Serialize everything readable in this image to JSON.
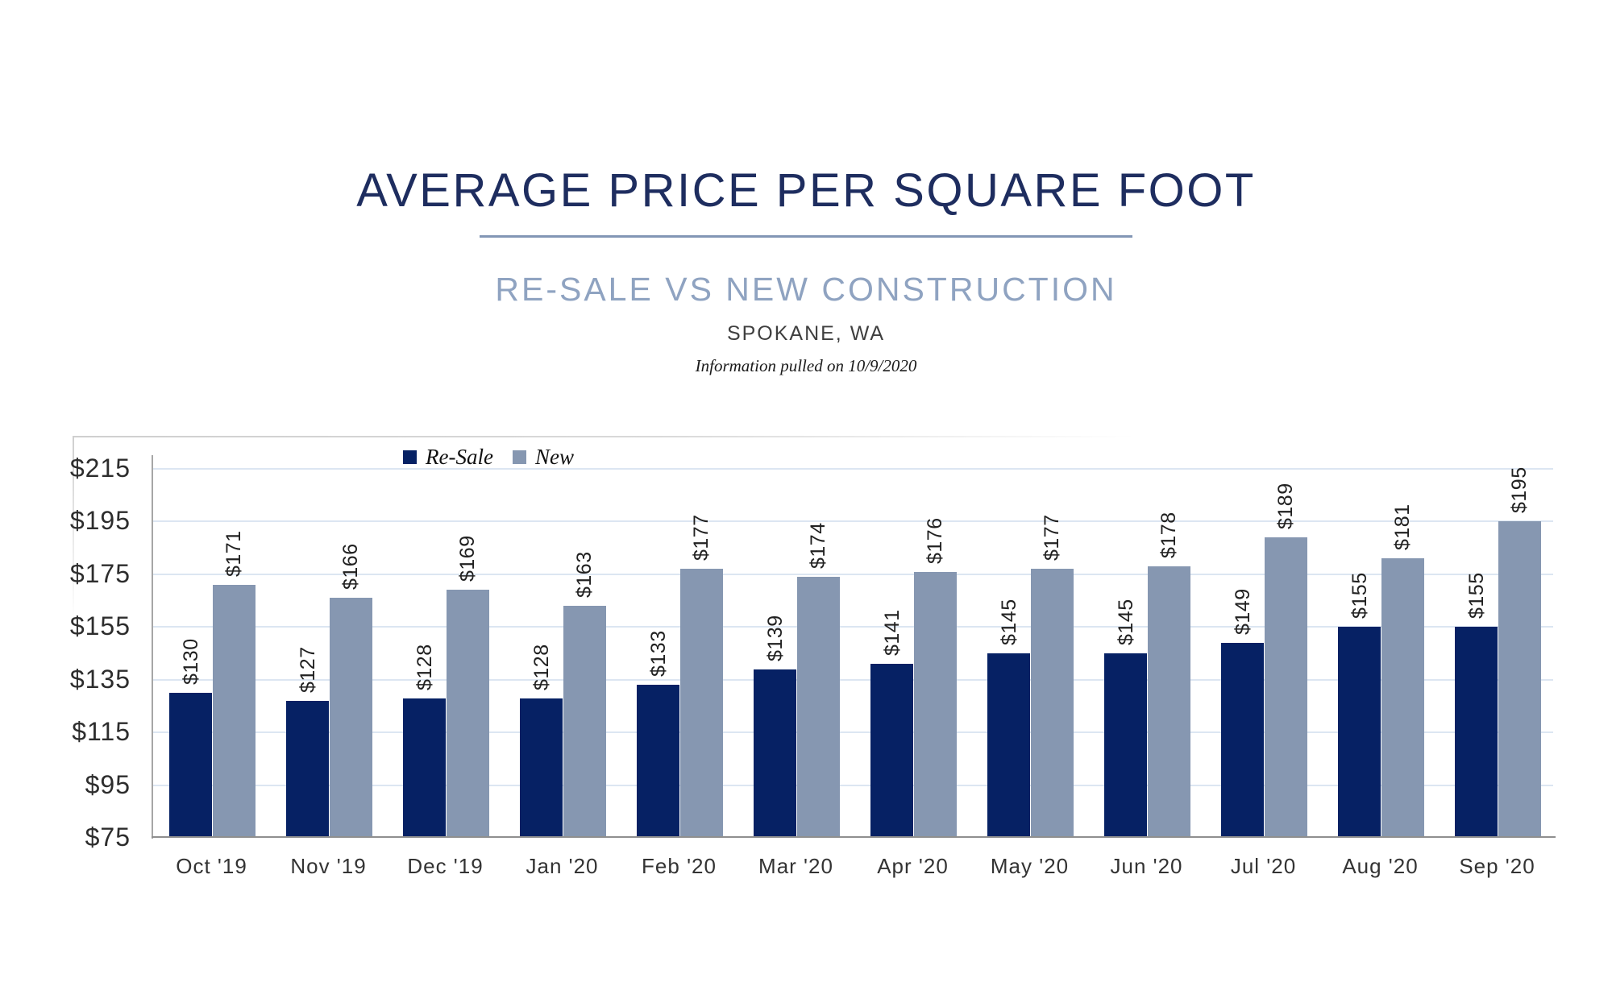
{
  "header": {
    "title": "AVERAGE PRICE PER SQUARE FOOT",
    "subtitle": "RE-SALE VS NEW CONSTRUCTION",
    "location": "SPOKANE, WA",
    "info_note": "Information pulled on 10/9/2020"
  },
  "colors": {
    "title": "#1e2d5f",
    "subtitle": "#8fa3c1",
    "divider": "#8296b5",
    "resale_bar": "#062164",
    "new_bar": "#8697b1",
    "gridline": "#dce6f2",
    "axis": "#8f8f8f"
  },
  "chart_data": {
    "type": "bar",
    "title": "Average Price Per Square Foot — Re-Sale vs New Construction, Spokane, WA",
    "categories": [
      "Oct '19",
      "Nov '19",
      "Dec '19",
      "Jan '20",
      "Feb '20",
      "Mar '20",
      "Apr '20",
      "May '20",
      "Jun '20",
      "Jul '20",
      "Aug '20",
      "Sep '20"
    ],
    "series": [
      {
        "name": "Re-Sale",
        "color": "#062164",
        "values": [
          130,
          127,
          128,
          128,
          133,
          139,
          141,
          145,
          145,
          149,
          155,
          155
        ],
        "data_labels": [
          "$130",
          "$127",
          "$128",
          "$128",
          "$133",
          "$139",
          "$141",
          "$145",
          "$145",
          "$149",
          "$155",
          "$155"
        ]
      },
      {
        "name": "New",
        "color": "#8697b1",
        "values": [
          171,
          166,
          169,
          163,
          177,
          174,
          176,
          177,
          178,
          189,
          181,
          195
        ],
        "data_labels": [
          "$171",
          "$166",
          "$169",
          "$163",
          "$177",
          "$174",
          "$176",
          "$177",
          "$178",
          "$189",
          "$181",
          "$195"
        ]
      }
    ],
    "ylim": [
      75,
      215
    ],
    "yticks": [
      {
        "value": 215,
        "label": "$215"
      },
      {
        "value": 195,
        "label": "$195"
      },
      {
        "value": 175,
        "label": "$175"
      },
      {
        "value": 155,
        "label": "$155"
      },
      {
        "value": 135,
        "label": "$135"
      },
      {
        "value": 115,
        "label": "$115"
      },
      {
        "value": 95,
        "label": "$95"
      },
      {
        "value": 75,
        "label": "$75"
      }
    ],
    "grid": true,
    "legend_position": "top-inside-left"
  }
}
